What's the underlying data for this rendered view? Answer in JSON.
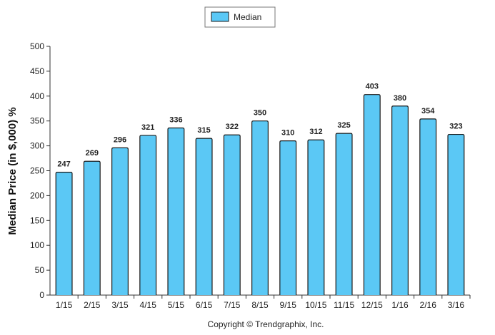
{
  "chart_data": {
    "type": "bar",
    "categories": [
      "1/15",
      "2/15",
      "3/15",
      "4/15",
      "5/15",
      "6/15",
      "7/15",
      "8/15",
      "9/15",
      "10/15",
      "11/15",
      "12/15",
      "1/16",
      "2/16",
      "3/16"
    ],
    "series": [
      {
        "name": "Median",
        "values": [
          247,
          269,
          296,
          321,
          336,
          315,
          322,
          350,
          310,
          312,
          325,
          403,
          380,
          354,
          323
        ]
      }
    ],
    "ylabel": "Median Price (in $,000) %",
    "xlabel": "",
    "ylim": [
      0,
      500
    ],
    "yticks": [
      0,
      50,
      100,
      150,
      200,
      250,
      300,
      350,
      400,
      450,
      500
    ],
    "grid": false,
    "legend_position": "top-center",
    "colors": {
      "bar_fill": "#5bc8f5",
      "bar_stroke": "#1a1a1a",
      "axis": "#333333"
    }
  },
  "footer": {
    "copyright": "Copyright © Trendgraphix, Inc."
  }
}
